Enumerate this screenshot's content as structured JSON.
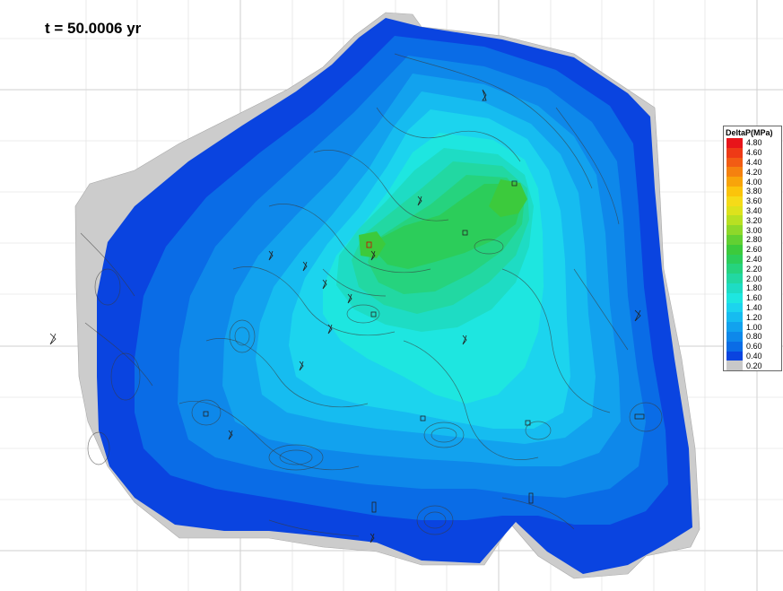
{
  "time_label": "t = 50.0006 yr",
  "legend": {
    "title": "DeltaP(MPa)",
    "entries": [
      {
        "label": "4.80",
        "color": "#e8141a"
      },
      {
        "label": "4.60",
        "color": "#ee3a16"
      },
      {
        "label": "4.40",
        "color": "#f25c14"
      },
      {
        "label": "4.20",
        "color": "#f5810f"
      },
      {
        "label": "4.00",
        "color": "#f8a40a"
      },
      {
        "label": "3.80",
        "color": "#fbc40b"
      },
      {
        "label": "3.60",
        "color": "#f5db18"
      },
      {
        "label": "3.40",
        "color": "#dde21c"
      },
      {
        "label": "3.20",
        "color": "#b8e022"
      },
      {
        "label": "3.00",
        "color": "#8ed82a"
      },
      {
        "label": "2.80",
        "color": "#62d032"
      },
      {
        "label": "2.60",
        "color": "#3cca3c"
      },
      {
        "label": "2.40",
        "color": "#2ccd5a"
      },
      {
        "label": "2.20",
        "color": "#26d37e"
      },
      {
        "label": "2.00",
        "color": "#22d8a2"
      },
      {
        "label": "1.80",
        "color": "#1edcc4"
      },
      {
        "label": "1.60",
        "color": "#1ee6e0"
      },
      {
        "label": "1.40",
        "color": "#1cd4ee"
      },
      {
        "label": "1.20",
        "color": "#16bcf0"
      },
      {
        "label": "1.00",
        "color": "#12a2ee"
      },
      {
        "label": "0.80",
        "color": "#0e88ea"
      },
      {
        "label": "0.60",
        "color": "#0a6ce6"
      },
      {
        "label": "0.40",
        "color": "#0a44e0"
      },
      {
        "label": "0.20",
        "color": "#c8c8c8"
      }
    ]
  }
}
